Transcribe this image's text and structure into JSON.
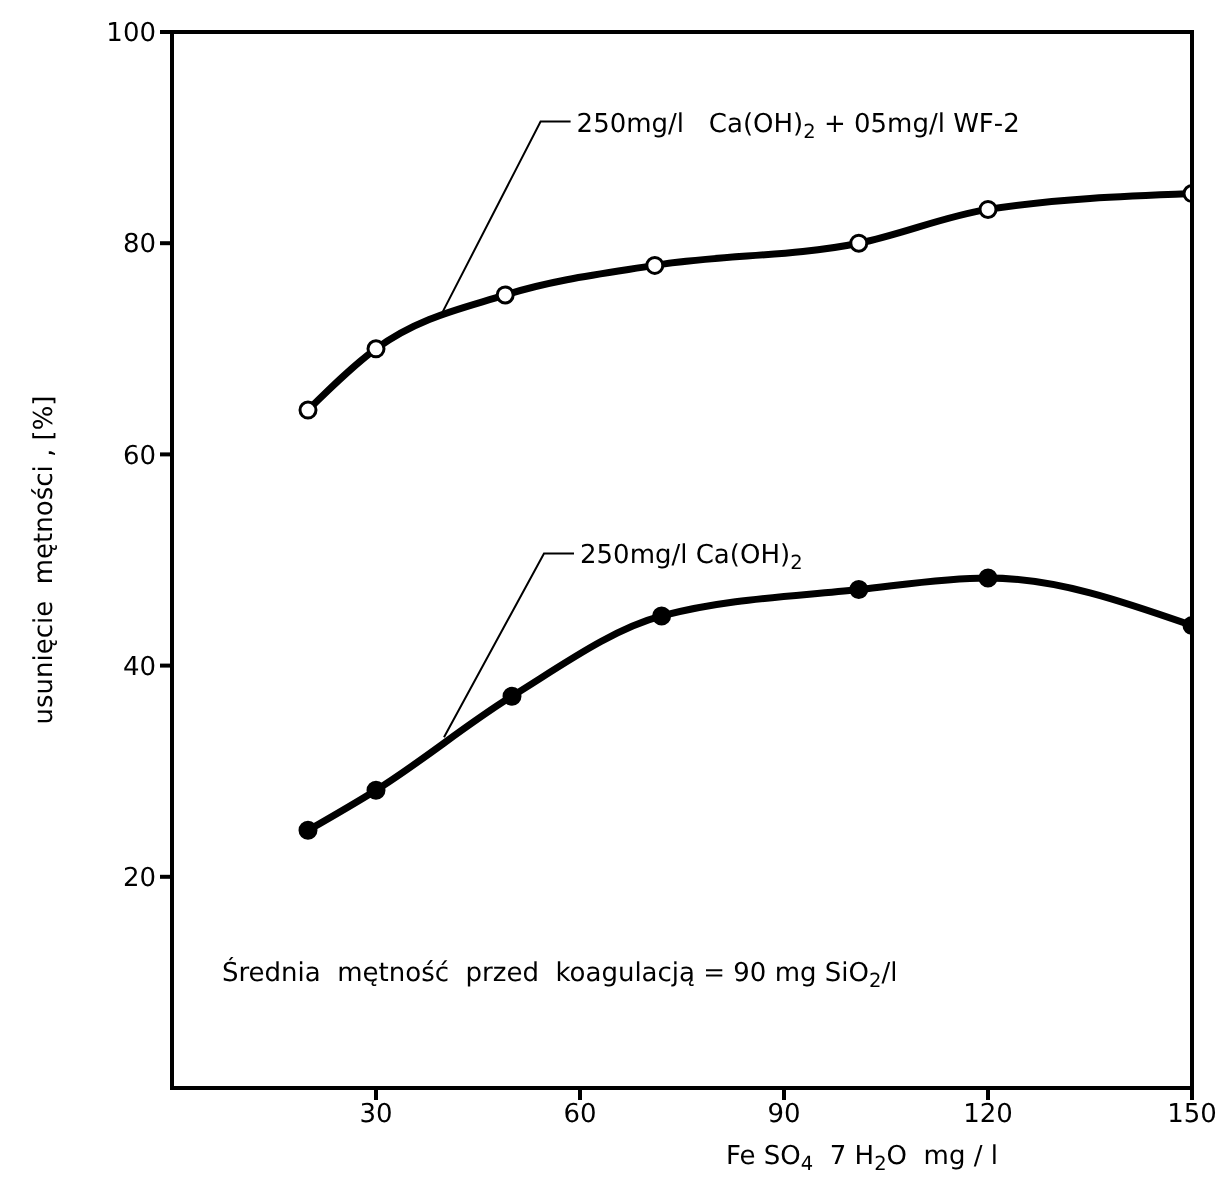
{
  "chart_data": {
    "type": "line",
    "xlabel": "Fe SO$_{4}$  7 H$_{2}$O  mg / l",
    "ylabel": "usunięcie  mętności , [%]",
    "annotations": [
      "Średnia  mętność  przed  koagulacją = 90 mg SiO$_{2}$/l"
    ],
    "xlim": [
      0,
      150
    ],
    "xticks": [
      30,
      60,
      90,
      120,
      150
    ],
    "ylim": [
      0,
      100
    ],
    "yticks": [
      20,
      40,
      60,
      80,
      100
    ],
    "marker": "circle",
    "line_style": "solid",
    "series": [
      {
        "name": "250mg/l   Ca(OH)$_{2}$ + 05mg/l WF-2",
        "color": "#000000",
        "x": [
          20,
          30,
          49,
          71,
          101,
          120,
          150
        ],
        "values": [
          64.2,
          70.0,
          75.1,
          77.9,
          80.0,
          83.2,
          84.7
        ]
      },
      {
        "name": "250mg/l Ca(OH)$_{2}$",
        "color": "#000000",
        "x": [
          20,
          30,
          50,
          72,
          101,
          120,
          150
        ],
        "values": [
          24.4,
          28.2,
          37.1,
          44.7,
          47.2,
          48.3,
          43.8
        ]
      }
    ]
  }
}
